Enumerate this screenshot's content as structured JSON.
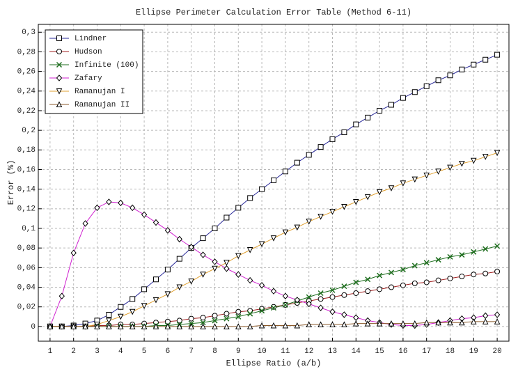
{
  "chart_data": {
    "type": "line",
    "title": "Ellipse Perimeter Calculation Error Table (Method 6-11)",
    "x_label": "Ellipse Ratio (a/b)",
    "y_label": "Error (%)",
    "x": [
      1,
      1.5,
      2,
      2.5,
      3,
      3.5,
      4,
      4.5,
      5,
      5.5,
      6,
      6.5,
      7,
      7.5,
      8,
      8.5,
      9,
      9.5,
      10,
      10.5,
      11,
      11.5,
      12,
      12.5,
      13,
      13.5,
      14,
      14.5,
      15,
      15.5,
      16,
      16.5,
      17,
      17.5,
      18,
      18.5,
      19,
      19.5,
      20
    ],
    "xlim": [
      0.5,
      20.5
    ],
    "xticks": [
      1,
      2,
      3,
      4,
      5,
      6,
      7,
      8,
      9,
      10,
      11,
      12,
      13,
      14,
      15,
      16,
      17,
      18,
      19,
      20
    ],
    "ylim": [
      -0.015,
      0.308
    ],
    "yticks": [
      0,
      {
        "value": 0.02,
        "label": "0,02"
      },
      {
        "value": 0.04,
        "label": "0,04"
      },
      {
        "value": 0.06,
        "label": "0,06"
      },
      {
        "value": 0.08,
        "label": "0,08"
      },
      {
        "value": 0.1,
        "label": "0,1"
      },
      {
        "value": 0.12,
        "label": "0,12"
      },
      {
        "value": 0.14,
        "label": "0,14"
      },
      {
        "value": 0.16,
        "label": "0,16"
      },
      {
        "value": 0.18,
        "label": "0,18"
      },
      {
        "value": 0.2,
        "label": "0,2"
      },
      {
        "value": 0.22,
        "label": "0,22"
      },
      {
        "value": 0.24,
        "label": "0,24"
      },
      {
        "value": 0.26,
        "label": "0,26"
      },
      {
        "value": 0.28,
        "label": "0,28"
      },
      {
        "value": 0.3,
        "label": "0,3"
      }
    ],
    "grid": true,
    "legend": "top-left",
    "series": [
      {
        "name": "Lindner",
        "color": "#2a2a9a",
        "marker": "square",
        "values": [
          0,
          0,
          0.001,
          0.003,
          0.006,
          0.012,
          0.02,
          0.028,
          0.038,
          0.048,
          0.058,
          0.069,
          0.08,
          0.09,
          0.1,
          0.111,
          0.121,
          0.131,
          0.14,
          0.149,
          0.158,
          0.167,
          0.175,
          0.183,
          0.191,
          0.198,
          0.206,
          0.213,
          0.22,
          0.226,
          0.233,
          0.239,
          0.245,
          0.251,
          0.256,
          0.262,
          0.267,
          0.272,
          0.277
        ]
      },
      {
        "name": "Hudson",
        "color": "#a02020",
        "marker": "circle",
        "values": [
          0,
          0,
          0,
          0,
          0.001,
          0.001,
          0.002,
          0.002,
          0.003,
          0.004,
          0.005,
          0.006,
          0.008,
          0.009,
          0.011,
          0.013,
          0.015,
          0.016,
          0.018,
          0.02,
          0.022,
          0.024,
          0.026,
          0.028,
          0.03,
          0.032,
          0.034,
          0.036,
          0.038,
          0.04,
          0.042,
          0.044,
          0.045,
          0.047,
          0.049,
          0.051,
          0.053,
          0.054,
          0.056
        ]
      },
      {
        "name": "Infinite (100)",
        "color": "#1f6e1f",
        "marker": "x",
        "values": [
          0,
          0,
          0,
          0,
          0,
          0,
          0,
          0,
          0,
          0.001,
          0.001,
          0.002,
          0.003,
          0.004,
          0.006,
          0.008,
          0.01,
          0.013,
          0.016,
          0.019,
          0.022,
          0.026,
          0.03,
          0.034,
          0.037,
          0.041,
          0.045,
          0.048,
          0.052,
          0.055,
          0.058,
          0.062,
          0.065,
          0.068,
          0.071,
          0.073,
          0.076,
          0.079,
          0.082
        ]
      },
      {
        "name": "Zafary",
        "color": "#d020d0",
        "marker": "diamond",
        "values": [
          0,
          0.031,
          0.075,
          0.105,
          0.121,
          0.127,
          0.126,
          0.121,
          0.114,
          0.106,
          0.098,
          0.089,
          0.081,
          0.073,
          0.066,
          0.059,
          0.053,
          0.047,
          0.042,
          0.036,
          0.031,
          0.027,
          0.023,
          0.019,
          0.015,
          0.012,
          0.009,
          0.006,
          0.004,
          0.002,
          0.001,
          0.001,
          0.002,
          0.004,
          0.006,
          0.008,
          0.009,
          0.011,
          0.012
        ]
      },
      {
        "name": "Ramanujan I",
        "color": "#e0a030",
        "marker": "triangle-down",
        "values": [
          0,
          0,
          0,
          0,
          0.002,
          0.006,
          0.01,
          0.015,
          0.021,
          0.027,
          0.033,
          0.04,
          0.046,
          0.053,
          0.059,
          0.065,
          0.072,
          0.078,
          0.084,
          0.09,
          0.096,
          0.101,
          0.107,
          0.112,
          0.117,
          0.122,
          0.127,
          0.132,
          0.137,
          0.141,
          0.146,
          0.15,
          0.154,
          0.158,
          0.162,
          0.166,
          0.169,
          0.173,
          0.177
        ]
      },
      {
        "name": "Ramanujan II",
        "color": "#8b5a2b",
        "marker": "triangle-up",
        "values": [
          0,
          0,
          0,
          0,
          0,
          0,
          0,
          0,
          0,
          0,
          0,
          0,
          0,
          0,
          0,
          0,
          0,
          0,
          0.001,
          0.001,
          0.001,
          0.001,
          0.002,
          0.002,
          0.002,
          0.002,
          0.003,
          0.003,
          0.003,
          0.003,
          0.003,
          0.003,
          0.004,
          0.004,
          0.004,
          0.004,
          0.005,
          0.005,
          0.005
        ]
      }
    ]
  }
}
